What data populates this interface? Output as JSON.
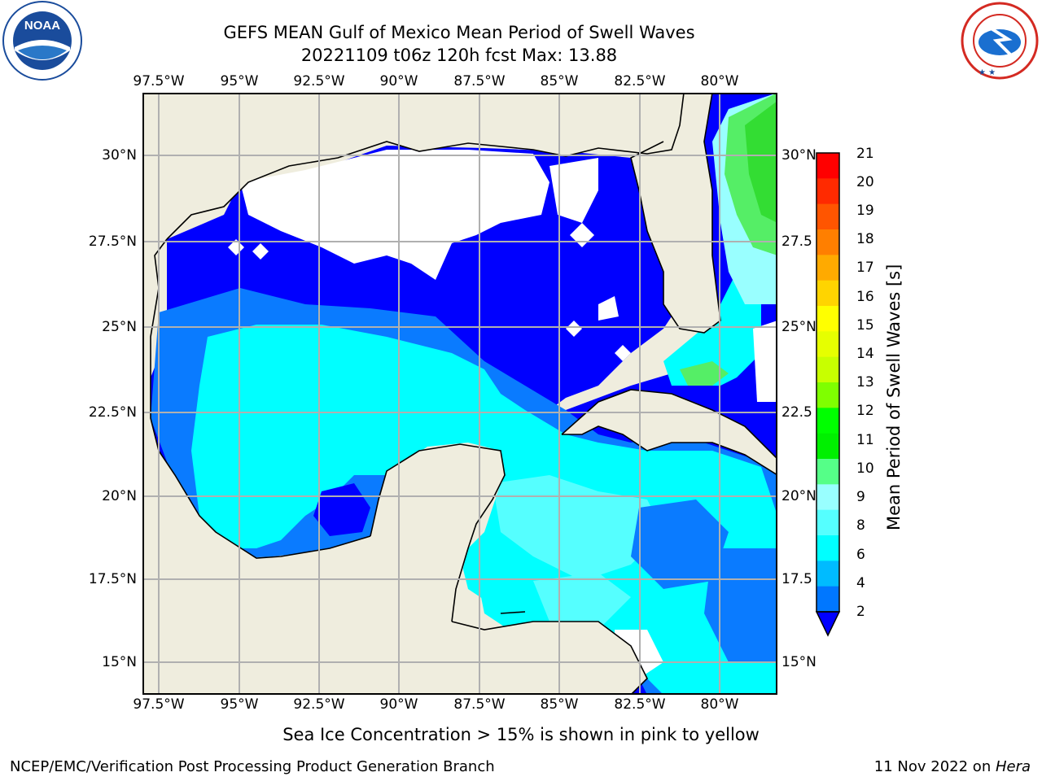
{
  "title": {
    "line1": "GEFS MEAN Gulf of Mexico Mean Period of Swell Waves",
    "line2": "20221109 t06z 120h fcst   Max: 13.88"
  },
  "logos": {
    "left": {
      "text": "NOAA",
      "ring_text": "NATIONAL OCEANIC AND ATMOSPHERIC ADMINISTRATION · U.S. DEPARTMENT OF COMMERCE",
      "color": "#1a4c9c"
    },
    "right": {
      "ring_text": "NATIONAL WEATHER SERVICE",
      "color": "#d42a22"
    }
  },
  "axes": {
    "lon_ticks": [
      "97.5°W",
      "95°W",
      "92.5°W",
      "90°W",
      "87.5°W",
      "85°W",
      "82.5°W",
      "80°W"
    ],
    "lat_ticks_left": [
      "30°N",
      "27.5°N",
      "25°N",
      "22.5°N",
      "20°N",
      "17.5°N",
      "15°N"
    ],
    "lat_ticks_right": [
      "30°N",
      "27.5",
      "25°N",
      "22.5",
      "20°N",
      "17.5",
      "15°N"
    ]
  },
  "map_colors": {
    "land": "#efedde",
    "coast": "#000000",
    "grid": "#b0b0b0",
    "missing": "#ffffff"
  },
  "colorbar": {
    "label": "Mean Period of Swell Waves [s]",
    "ticks": [
      "21",
      "20",
      "19",
      "18",
      "17",
      "16",
      "15",
      "14",
      "13",
      "12",
      "11",
      "10",
      "9",
      "8",
      "6",
      "4",
      "2"
    ],
    "colors_top_to_bottom": [
      "#ff0000",
      "#ff2a00",
      "#ff5500",
      "#ff7f00",
      "#ffaa00",
      "#ffd400",
      "#ffff00",
      "#e6ff00",
      "#c8ff00",
      "#7fff00",
      "#00ff00",
      "#00f000",
      "#55ff88",
      "#99ffff",
      "#55ffff",
      "#00ffff",
      "#00bbff",
      "#0077ff"
    ],
    "extend_color": "#0000ff"
  },
  "note": "Sea Ice Concentration > 15% is shown in pink to yellow",
  "footer": {
    "left": "NCEP/EMC/Verification Post Processing Product Generation Branch",
    "right_date": "11 Nov 2022 on ",
    "right_machine": "Hera"
  }
}
